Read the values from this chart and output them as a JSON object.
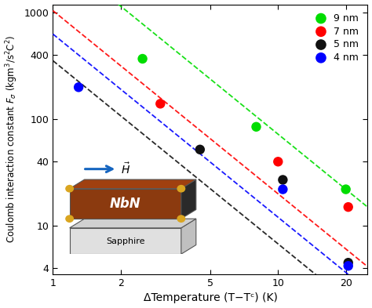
{
  "xlabel": "ΔTemperature (T−Tᶜ) (K)",
  "ylabel": "Coulomb interaction constant $F_{\\sigma}$ (kgm$^3$/s$^2$C$^2$)",
  "xlim": [
    1,
    25
  ],
  "ylim": [
    3.5,
    1200
  ],
  "xticks": [
    1,
    2,
    5,
    10,
    20
  ],
  "xtick_labels": [
    "1",
    "2",
    "5",
    "10",
    "20"
  ],
  "yticks": [
    4,
    10,
    40,
    100,
    400,
    1000
  ],
  "ytick_labels": [
    "4",
    "10",
    "40",
    "100",
    "400",
    "1000"
  ],
  "series": [
    {
      "label": "9 nm",
      "color": "#00dd00",
      "x_data": [
        2.5,
        8.0,
        20.0
      ],
      "y_data": [
        370,
        85,
        22
      ],
      "fit_intercept": 3.58,
      "fit_slope": -1.72
    },
    {
      "label": "7 nm",
      "color": "#ff0000",
      "x_data": [
        3.0,
        10.0,
        20.5
      ],
      "y_data": [
        140,
        40,
        15
      ],
      "fit_intercept": 3.02,
      "fit_slope": -1.72
    },
    {
      "label": "5 nm",
      "color": "#111111",
      "x_data": [
        4.5,
        10.5,
        20.5
      ],
      "y_data": [
        52,
        27,
        4.5
      ],
      "fit_intercept": 2.55,
      "fit_slope": -1.72
    },
    {
      "label": "4 nm",
      "color": "#0000ff",
      "x_data": [
        1.3,
        10.5,
        20.5
      ],
      "y_data": [
        200,
        22,
        4.2
      ],
      "fit_intercept": 2.8,
      "fit_slope": -1.72
    }
  ],
  "background_color": "#ffffff"
}
